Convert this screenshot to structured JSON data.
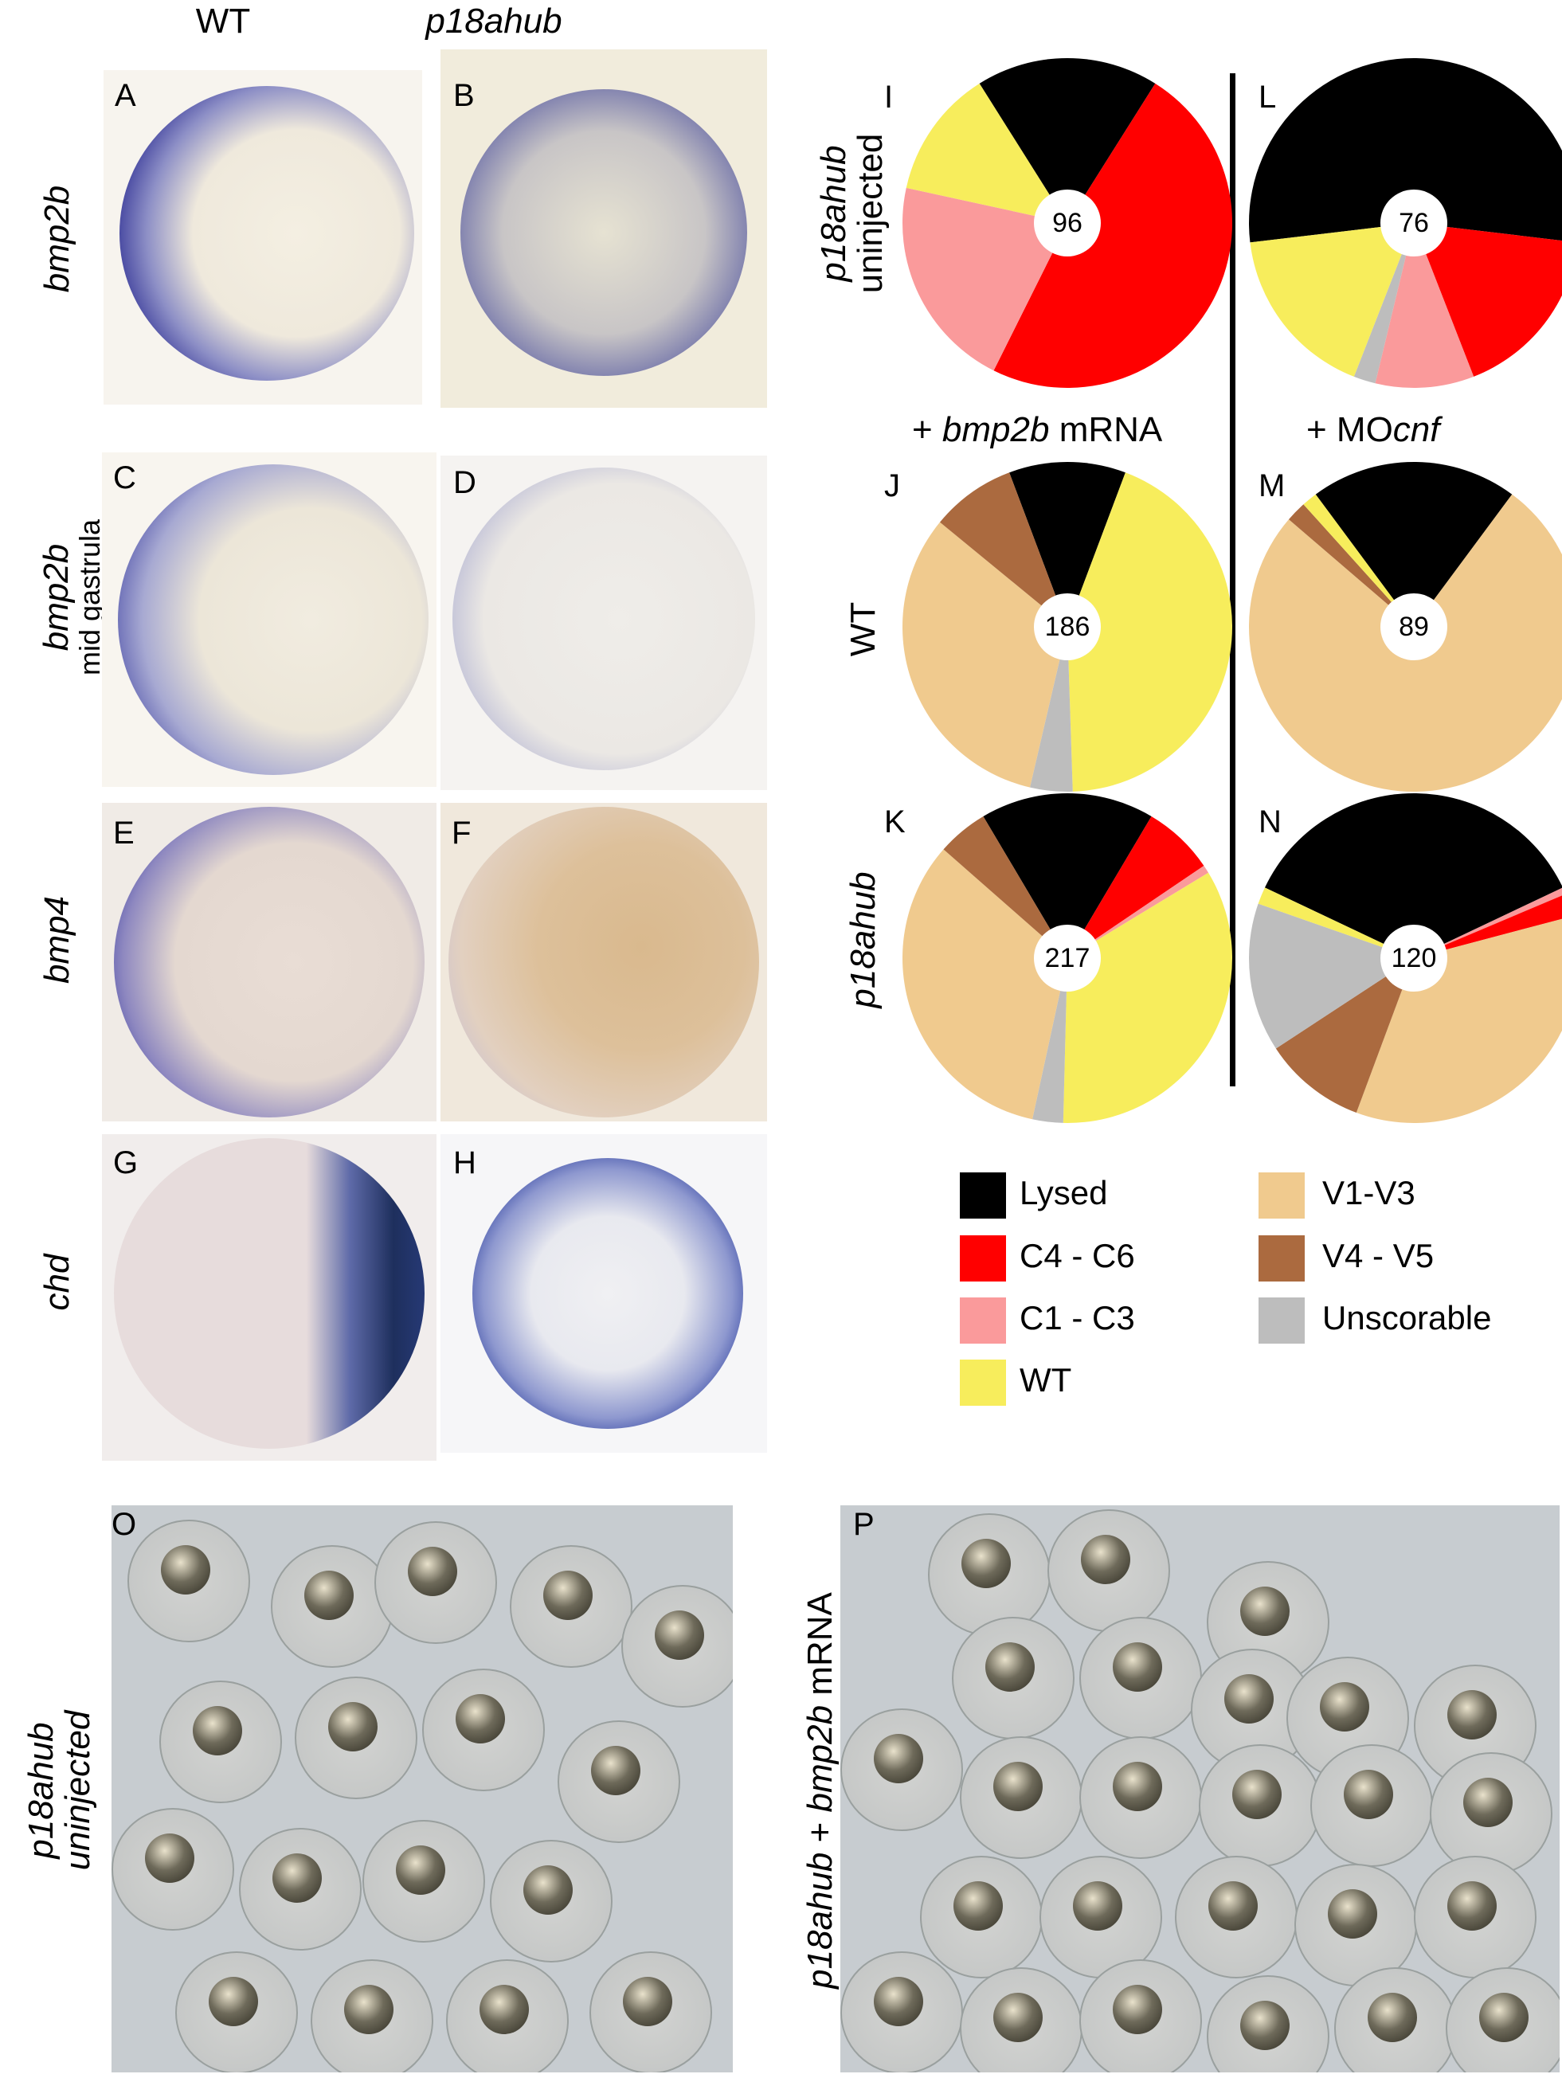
{
  "columns": {
    "wt": "WT",
    "mutant": "p18ahub"
  },
  "rows": {
    "a": {
      "gene": "bmp2b"
    },
    "c": {
      "gene": "bmp2b",
      "stage": "mid gastrula"
    },
    "e": {
      "gene": "bmp4"
    },
    "g": {
      "gene": "chd"
    }
  },
  "panel_letters": [
    "A",
    "B",
    "C",
    "D",
    "E",
    "F",
    "G",
    "H",
    "I",
    "J",
    "K",
    "L",
    "M",
    "N",
    "O",
    "P"
  ],
  "pie_section": {
    "row_labels": {
      "i": {
        "line1": "p18ahub",
        "line2": "uninjected"
      },
      "j": "WT",
      "k": "p18ahub"
    },
    "conditions": {
      "bmp2b": {
        "pre": "+ ",
        "gene": "bmp2b",
        "post": " mRNA"
      },
      "mo": {
        "pre": "+ MO",
        "gene": "cnf"
      }
    }
  },
  "chart_data": [
    {
      "type": "pie",
      "panel": "I",
      "total": "96",
      "series": [
        {
          "name": "Lysed",
          "value": 0.17
        },
        {
          "name": "C4 - C6",
          "value": 0.46
        },
        {
          "name": "C1 - C3",
          "value": 0.2
        },
        {
          "name": "WT",
          "value": 0.12
        }
      ]
    },
    {
      "type": "pie",
      "panel": "L",
      "total": "76",
      "series": [
        {
          "name": "Lysed",
          "value": 0.5
        },
        {
          "name": "C4 - C6",
          "value": 0.16
        },
        {
          "name": "C1 - C3",
          "value": 0.09
        },
        {
          "name": "Unscorable",
          "value": 0.02
        },
        {
          "name": "WT",
          "value": 0.16
        }
      ]
    },
    {
      "type": "pie",
      "panel": "J",
      "total": "186",
      "series": [
        {
          "name": "Lysed",
          "value": 0.11
        },
        {
          "name": "WT",
          "value": 0.42
        },
        {
          "name": "Unscorable",
          "value": 0.04
        },
        {
          "name": "V1-V3",
          "value": 0.31
        },
        {
          "name": "V4 - V5",
          "value": 0.08
        }
      ]
    },
    {
      "type": "pie",
      "panel": "M",
      "total": "89",
      "series": [
        {
          "name": "Lysed",
          "value": 0.2
        },
        {
          "name": "V1-V3",
          "value": 0.75
        },
        {
          "name": "V4 - V5",
          "value": 0.02
        },
        {
          "name": "WT",
          "value": 0.015
        }
      ]
    },
    {
      "type": "pie",
      "panel": "K",
      "total": "217",
      "series": [
        {
          "name": "Lysed",
          "value": 0.17
        },
        {
          "name": "C4 - C6",
          "value": 0.07
        },
        {
          "name": "C1 - C3",
          "value": 0.008
        },
        {
          "name": "WT",
          "value": 0.34
        },
        {
          "name": "Unscorable",
          "value": 0.03
        },
        {
          "name": "V1-V3",
          "value": 0.33
        },
        {
          "name": "V4 - V5",
          "value": 0.05
        }
      ]
    },
    {
      "type": "pie",
      "panel": "N",
      "total": "120",
      "series": [
        {
          "name": "Lysed",
          "value": 0.32
        },
        {
          "name": "C1 - C3",
          "value": 0.006
        },
        {
          "name": "C4 - C6",
          "value": 0.02
        },
        {
          "name": "V1-V3",
          "value": 0.31
        },
        {
          "name": "V4 - V5",
          "value": 0.09
        },
        {
          "name": "Unscorable",
          "value": 0.13
        },
        {
          "name": "WT",
          "value": 0.015
        }
      ]
    }
  ],
  "legend": [
    {
      "label": "Lysed",
      "color": "#000000"
    },
    {
      "label": "C4 - C6",
      "color": "#ff0000"
    },
    {
      "label": "C1 - C3",
      "color": "#fa9a9b"
    },
    {
      "label": "WT",
      "color": "#f7ed5c"
    },
    {
      "label": "V1-V3",
      "color": "#f0ca8e"
    },
    {
      "label": "V4 - V5",
      "color": "#ab6a3f"
    },
    {
      "label": "Unscorable",
      "color": "#bdbdbd"
    }
  ],
  "bottom": {
    "o_label": {
      "line1": "p18ahub",
      "line2": "uninjected"
    },
    "p_label": {
      "pre": "p18ahub",
      "mid": " + ",
      "gene": "bmp2b",
      "post": " mRNA"
    }
  }
}
